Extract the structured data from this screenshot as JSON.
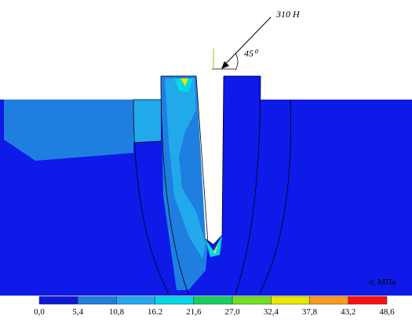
{
  "force_label": "310 H",
  "angle_label": "45⁰",
  "colorbar": {
    "title": "σ, МПа",
    "ticks": [
      "0,0",
      "5,4",
      "10,8",
      "16.2",
      "21,6",
      "27,0",
      "32,4",
      "37,8",
      "43,2",
      "48,6"
    ],
    "colors": [
      "#0d1ad8",
      "#1f7fe0",
      "#22a9ec",
      "#00d8e8",
      "#18d060",
      "#70e020",
      "#e8e800",
      "#ff9a20",
      "#ff1010"
    ]
  }
}
